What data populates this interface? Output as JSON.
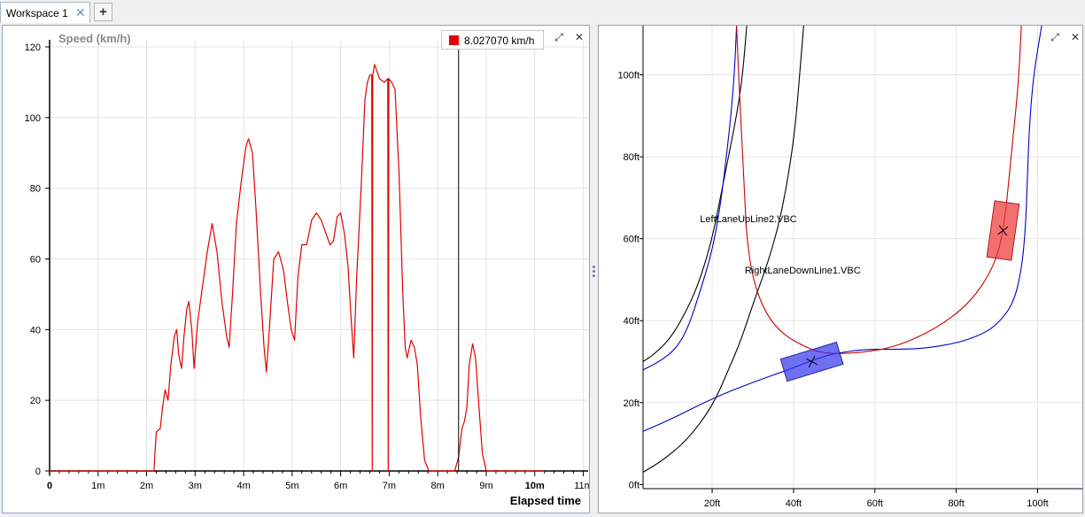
{
  "tabs": {
    "workspace_label": "Workspace 1",
    "close_glyph": "✕",
    "add_glyph": "+"
  },
  "window_controls": {
    "expand_glyph": "⤢",
    "close_glyph": "✕"
  },
  "legend": {
    "value_text": "8.027070 km/h",
    "color": "#e00000"
  },
  "chart_data": [
    {
      "type": "line",
      "title": "Speed (km/h)",
      "xlabel": "Elapsed time",
      "ylabel": "",
      "x_ticks": [
        "0",
        "1m",
        "2m",
        "3m",
        "4m",
        "5m",
        "6m",
        "7m",
        "8m",
        "9m",
        "10m",
        "11m"
      ],
      "y_ticks": [
        "0",
        "20",
        "40",
        "60",
        "80",
        "100",
        "120"
      ],
      "xlim_minutes": [
        0,
        11.1
      ],
      "ylim": [
        0,
        122
      ],
      "cursor_minutes": 8.43,
      "grid": true,
      "series": [
        {
          "color": "#e00000",
          "points": [
            [
              0,
              0
            ],
            [
              2.0,
              0
            ],
            [
              2.15,
              0
            ],
            [
              2.17,
              5
            ],
            [
              2.2,
              11
            ],
            [
              2.28,
              12
            ],
            [
              2.33,
              18
            ],
            [
              2.38,
              23
            ],
            [
              2.44,
              20
            ],
            [
              2.5,
              30
            ],
            [
              2.57,
              38
            ],
            [
              2.62,
              40
            ],
            [
              2.66,
              33
            ],
            [
              2.72,
              29
            ],
            [
              2.77,
              38
            ],
            [
              2.83,
              46
            ],
            [
              2.87,
              48
            ],
            [
              2.93,
              40
            ],
            [
              2.98,
              29
            ],
            [
              3.05,
              42
            ],
            [
              3.15,
              52
            ],
            [
              3.25,
              62
            ],
            [
              3.35,
              70
            ],
            [
              3.45,
              62
            ],
            [
              3.55,
              48
            ],
            [
              3.65,
              38
            ],
            [
              3.7,
              35
            ],
            [
              3.77,
              50
            ],
            [
              3.85,
              70
            ],
            [
              3.95,
              82
            ],
            [
              4.05,
              92
            ],
            [
              4.1,
              94
            ],
            [
              4.18,
              90
            ],
            [
              4.25,
              75
            ],
            [
              4.35,
              50
            ],
            [
              4.42,
              35
            ],
            [
              4.47,
              28
            ],
            [
              4.53,
              40
            ],
            [
              4.62,
              60
            ],
            [
              4.72,
              62
            ],
            [
              4.82,
              57
            ],
            [
              4.9,
              48
            ],
            [
              4.98,
              40
            ],
            [
              5.05,
              37
            ],
            [
              5.12,
              55
            ],
            [
              5.2,
              64
            ],
            [
              5.3,
              64
            ],
            [
              5.4,
              71
            ],
            [
              5.5,
              73
            ],
            [
              5.6,
              71
            ],
            [
              5.7,
              67
            ],
            [
              5.78,
              64
            ],
            [
              5.85,
              65
            ],
            [
              5.93,
              72
            ],
            [
              6.0,
              73
            ],
            [
              6.08,
              67
            ],
            [
              6.15,
              58
            ],
            [
              6.22,
              42
            ],
            [
              6.27,
              32
            ],
            [
              6.33,
              55
            ],
            [
              6.42,
              80
            ],
            [
              6.5,
              105
            ],
            [
              6.55,
              110
            ],
            [
              6.6,
              112
            ],
            [
              6.64,
              112
            ],
            [
              6.65,
              0
            ],
            [
              6.66,
              112
            ],
            [
              6.7,
              115
            ],
            [
              6.8,
              111
            ],
            [
              6.9,
              110
            ],
            [
              6.97,
              111
            ],
            [
              6.98,
              0
            ],
            [
              6.99,
              111
            ],
            [
              7.05,
              110
            ],
            [
              7.12,
              108
            ],
            [
              7.2,
              85
            ],
            [
              7.28,
              50
            ],
            [
              7.33,
              35
            ],
            [
              7.37,
              32
            ],
            [
              7.45,
              37
            ],
            [
              7.52,
              35
            ],
            [
              7.58,
              30
            ],
            [
              7.65,
              15
            ],
            [
              7.73,
              3
            ],
            [
              7.82,
              0
            ],
            [
              8.35,
              0
            ],
            [
              8.43,
              4
            ],
            [
              8.5,
              12
            ],
            [
              8.55,
              14
            ],
            [
              8.6,
              18
            ],
            [
              8.65,
              30
            ],
            [
              8.72,
              36
            ],
            [
              8.78,
              32
            ],
            [
              8.85,
              18
            ],
            [
              8.92,
              5
            ],
            [
              9.0,
              0
            ],
            [
              10.2,
              0
            ]
          ]
        }
      ]
    },
    {
      "type": "line",
      "title": "",
      "xlabel": "",
      "ylabel": "",
      "x_ticks": [
        "20ft",
        "40ft",
        "60ft",
        "80ft",
        "100ft"
      ],
      "y_ticks": [
        "0ft",
        "20ft",
        "40ft",
        "60ft",
        "80ft",
        "100ft"
      ],
      "xlim_ft": [
        3,
        111
      ],
      "ylim_ft": [
        -1,
        112
      ],
      "grid": true,
      "annotations": [
        {
          "text": "LeftLaneUpLine2.VBC",
          "x": 17,
          "y": 64
        },
        {
          "text": "RightLaneDownLine1.VBC",
          "x": 28,
          "y": 51.5
        }
      ],
      "series": [
        {
          "color": "#000000",
          "points": [
            [
              3,
              30
            ],
            [
              6,
              32
            ],
            [
              10,
              36
            ],
            [
              14,
              43
            ],
            [
              17,
              50
            ],
            [
              20,
              60
            ],
            [
              22,
              70
            ],
            [
              24,
              80
            ],
            [
              26,
              90
            ],
            [
              27.5,
              100
            ],
            [
              28.5,
              112
            ]
          ]
        },
        {
          "color": "#000000",
          "points": [
            [
              3,
              3
            ],
            [
              8,
              6
            ],
            [
              14,
              11
            ],
            [
              20,
              19
            ],
            [
              24,
              28
            ],
            [
              27,
              35
            ],
            [
              30,
              44
            ],
            [
              34,
              55
            ],
            [
              37,
              66
            ],
            [
              39,
              77
            ],
            [
              40.5,
              88
            ],
            [
              41.5,
              100
            ],
            [
              42.5,
              112
            ]
          ]
        },
        {
          "color": "#0000cc",
          "points": [
            [
              3,
              28
            ],
            [
              7,
              30
            ],
            [
              11,
              33
            ],
            [
              14,
              38
            ],
            [
              17,
              47
            ],
            [
              20,
              57
            ],
            [
              22,
              68
            ],
            [
              23.5,
              80
            ],
            [
              24.7,
              91
            ],
            [
              25.5,
              101
            ],
            [
              26,
              112
            ]
          ]
        },
        {
          "color": "#0000cc",
          "points": [
            [
              3,
              13
            ],
            [
              10,
              16
            ],
            [
              20,
              21
            ],
            [
              30,
              25
            ],
            [
              40,
              28.5
            ],
            [
              45,
              30.5
            ],
            [
              50,
              32
            ],
            [
              57,
              33
            ],
            [
              65,
              33
            ],
            [
              72,
              33.2
            ],
            [
              80,
              34.5
            ],
            [
              86,
              36.5
            ],
            [
              90,
              39
            ],
            [
              94,
              44
            ],
            [
              96,
              52
            ],
            [
              97,
              62
            ],
            [
              97.5,
              75
            ],
            [
              98,
              88
            ],
            [
              99,
              100
            ],
            [
              101,
              112
            ]
          ]
        },
        {
          "color": "#cc0000",
          "points": [
            [
              26,
              112
            ],
            [
              26.5,
              100
            ],
            [
              27,
              90
            ],
            [
              27.5,
              80
            ],
            [
              28,
              70
            ],
            [
              28.5,
              60
            ],
            [
              30,
              50
            ],
            [
              33,
              42
            ],
            [
              37,
              37
            ],
            [
              42,
              34
            ],
            [
              47,
              32
            ],
            [
              55,
              32
            ],
            [
              65,
              33.5
            ],
            [
              75,
              38
            ],
            [
              83,
              44
            ],
            [
              88,
              51
            ],
            [
              90.5,
              57
            ],
            [
              92,
              65
            ],
            [
              93,
              75
            ],
            [
              94,
              85
            ],
            [
              95,
              95
            ],
            [
              95.5,
              102
            ],
            [
              96,
              112
            ]
          ]
        }
      ],
      "vehicles": [
        {
          "kind": "blue-rect",
          "x": 44.5,
          "y": 30,
          "color": "#3333ee"
        },
        {
          "kind": "red-rect",
          "x": 91.5,
          "y": 62,
          "color": "#ee3333"
        }
      ]
    }
  ]
}
